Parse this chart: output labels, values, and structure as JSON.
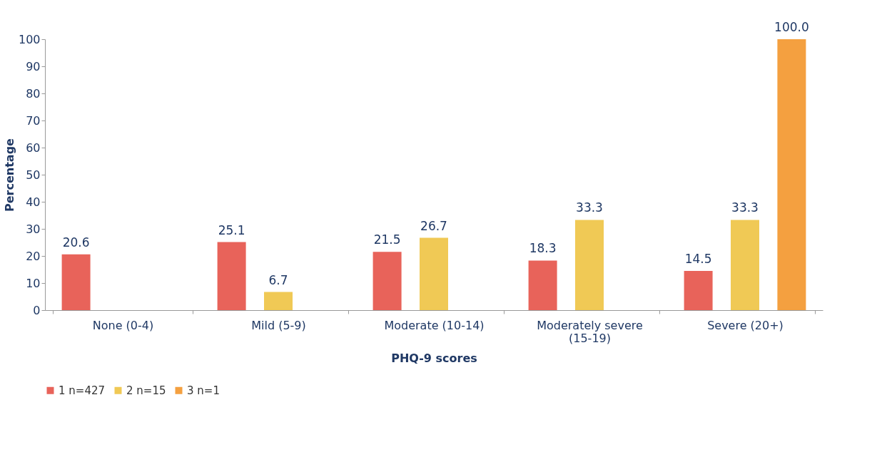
{
  "chart_data": {
    "type": "bar",
    "xlabel": "PHQ-9 scores",
    "ylabel": "Percentage",
    "categories": [
      "None (0-4)",
      "Mild (5-9)",
      "Moderate (10-14)",
      "Moderately severe (15-19)",
      "Severe (20+)"
    ],
    "series": [
      {
        "name": "1 n=427",
        "color": "#e8635a",
        "values": [
          20.6,
          25.1,
          21.5,
          18.3,
          14.5
        ],
        "value_labels": [
          "20.6",
          "25.1",
          "21.5",
          "18.3",
          "14.5"
        ]
      },
      {
        "name": "2 n=15",
        "color": "#f0c955",
        "values": [
          null,
          6.7,
          26.7,
          33.3,
          33.3
        ],
        "value_labels": [
          null,
          "6.7",
          "26.7",
          "33.3",
          "33.3"
        ]
      },
      {
        "name": "3 n=1",
        "color": "#f4a040",
        "values": [
          null,
          null,
          null,
          null,
          100.0
        ],
        "value_labels": [
          null,
          null,
          null,
          null,
          "100.0"
        ]
      }
    ],
    "ylim": [
      0,
      100
    ],
    "yticks": [
      0,
      10,
      20,
      30,
      40,
      50,
      60,
      70,
      80,
      90,
      100
    ],
    "grid": false,
    "legend": "bottom"
  }
}
